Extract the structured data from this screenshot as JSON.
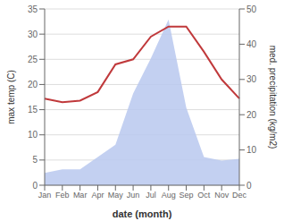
{
  "chart_data": {
    "type": "line",
    "categories": [
      "Jan",
      "Feb",
      "Mar",
      "Apr",
      "May",
      "Jun",
      "Jul",
      "Aug",
      "Sep",
      "Oct",
      "Nov",
      "Dec"
    ],
    "series": [
      {
        "type": "area",
        "axis": "y2",
        "color": "#b8c8ee",
        "values": [
          3.5,
          4.5,
          4.5,
          8.0,
          11.5,
          26.0,
          36.0,
          47.0,
          22.0,
          8.0,
          7.0,
          7.5
        ]
      },
      {
        "type": "line",
        "color": "#c0393b",
        "values": [
          17.2,
          16.5,
          16.8,
          18.5,
          24.0,
          25.0,
          29.5,
          31.5,
          31.5,
          26.5,
          21.0,
          17.2
        ]
      }
    ],
    "xlabel": "date (month)",
    "ylabel": "max temp (C)",
    "y2label": "med. precipitation (kg/m2)",
    "ylim": [
      0,
      35
    ],
    "yticks": [
      0,
      5,
      10,
      15,
      20,
      25,
      30,
      35
    ],
    "y2lim": [
      0,
      50
    ],
    "y2ticks": [
      0,
      10,
      20,
      30,
      40,
      50
    ],
    "grid": true
  }
}
